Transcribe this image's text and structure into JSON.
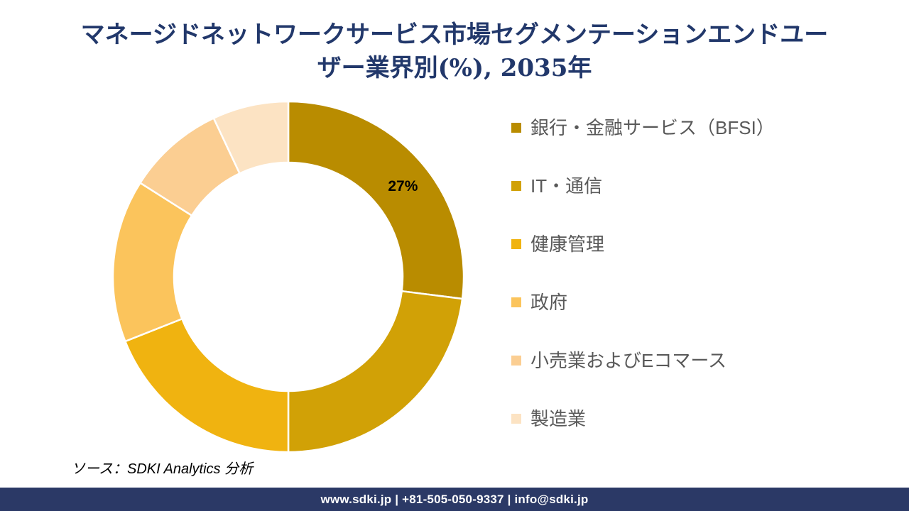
{
  "title": {
    "text": "マネージドネットワークサービス市場セグメンテーションエンドユーザー業界別(%), 2035年",
    "lines": [
      "マネージドネットワークサービス市場セグメンテーションエンドユー",
      "ザー業界別(%), 2035年"
    ],
    "color": "#22386B"
  },
  "chart_data": {
    "type": "pie",
    "subtype": "donut",
    "title": "マネージドネットワークサービス市場セグメンテーションエンドユーザー業界別(%), 2035年",
    "unit": "%",
    "categories": [
      "銀行・金融サービス（BFSI）",
      "IT・通信",
      "健康管理",
      "政府",
      "小売業およびEコマース",
      "製造業"
    ],
    "values": [
      27,
      23,
      19,
      15,
      9,
      7
    ],
    "colors": [
      "#B98C00",
      "#D1A106",
      "#F0B310",
      "#FBC45C",
      "#FBCE92",
      "#FCE3C3"
    ],
    "data_labels": [
      "27%",
      "",
      "",
      "",
      "",
      ""
    ],
    "data_label_color": "#000000",
    "start_angle_deg": 0,
    "direction": "clockwise",
    "donut_hole_ratio": 0.65,
    "separator_color": "#FFFFFF",
    "legend_position": "right"
  },
  "source": {
    "text": "ソース：SDKI Analytics 分析"
  },
  "footer": {
    "text": "www.sdki.jp | +81-505-050-9337 | info@sdki.jp",
    "background": "#2B3966",
    "text_color": "#FFFFFF"
  }
}
